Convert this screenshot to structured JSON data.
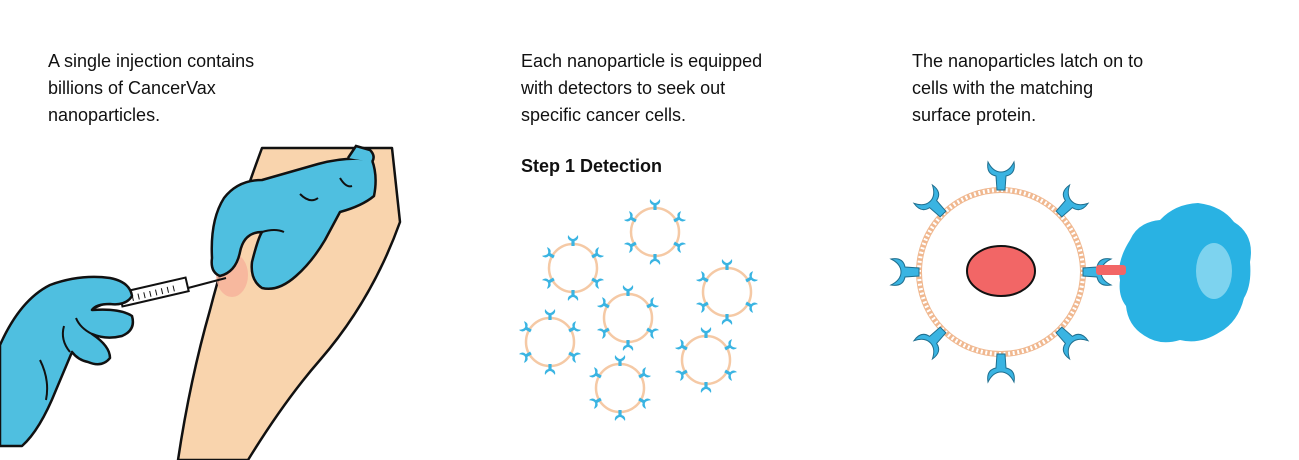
{
  "panels": [
    {
      "caption_lines": [
        "A single injection contains",
        "billions of CancerVax",
        "nanoparticles."
      ]
    },
    {
      "caption_lines": [
        "Each nanoparticle is equipped",
        "with detectors to seek out",
        "specific cancer cells."
      ],
      "step_label": "Step 1 Detection"
    },
    {
      "caption_lines": [
        "The nanoparticles latch on to",
        "cells with the matching",
        "surface protein."
      ]
    }
  ],
  "colors": {
    "glove": "#4fbfe0",
    "skin": "#f9d4ad",
    "shell": "#f5c9a5",
    "receptor": "#3ab4e2",
    "core": "#f26666",
    "cancer_cell": "#29b2e3",
    "nucleus": "#7dd3ef"
  },
  "icons": {
    "syringe": "syringe-icon",
    "glove": "glove-icon",
    "nanoparticle": "nanoparticle-icon",
    "cancer_cell": "cancer-cell-icon"
  }
}
